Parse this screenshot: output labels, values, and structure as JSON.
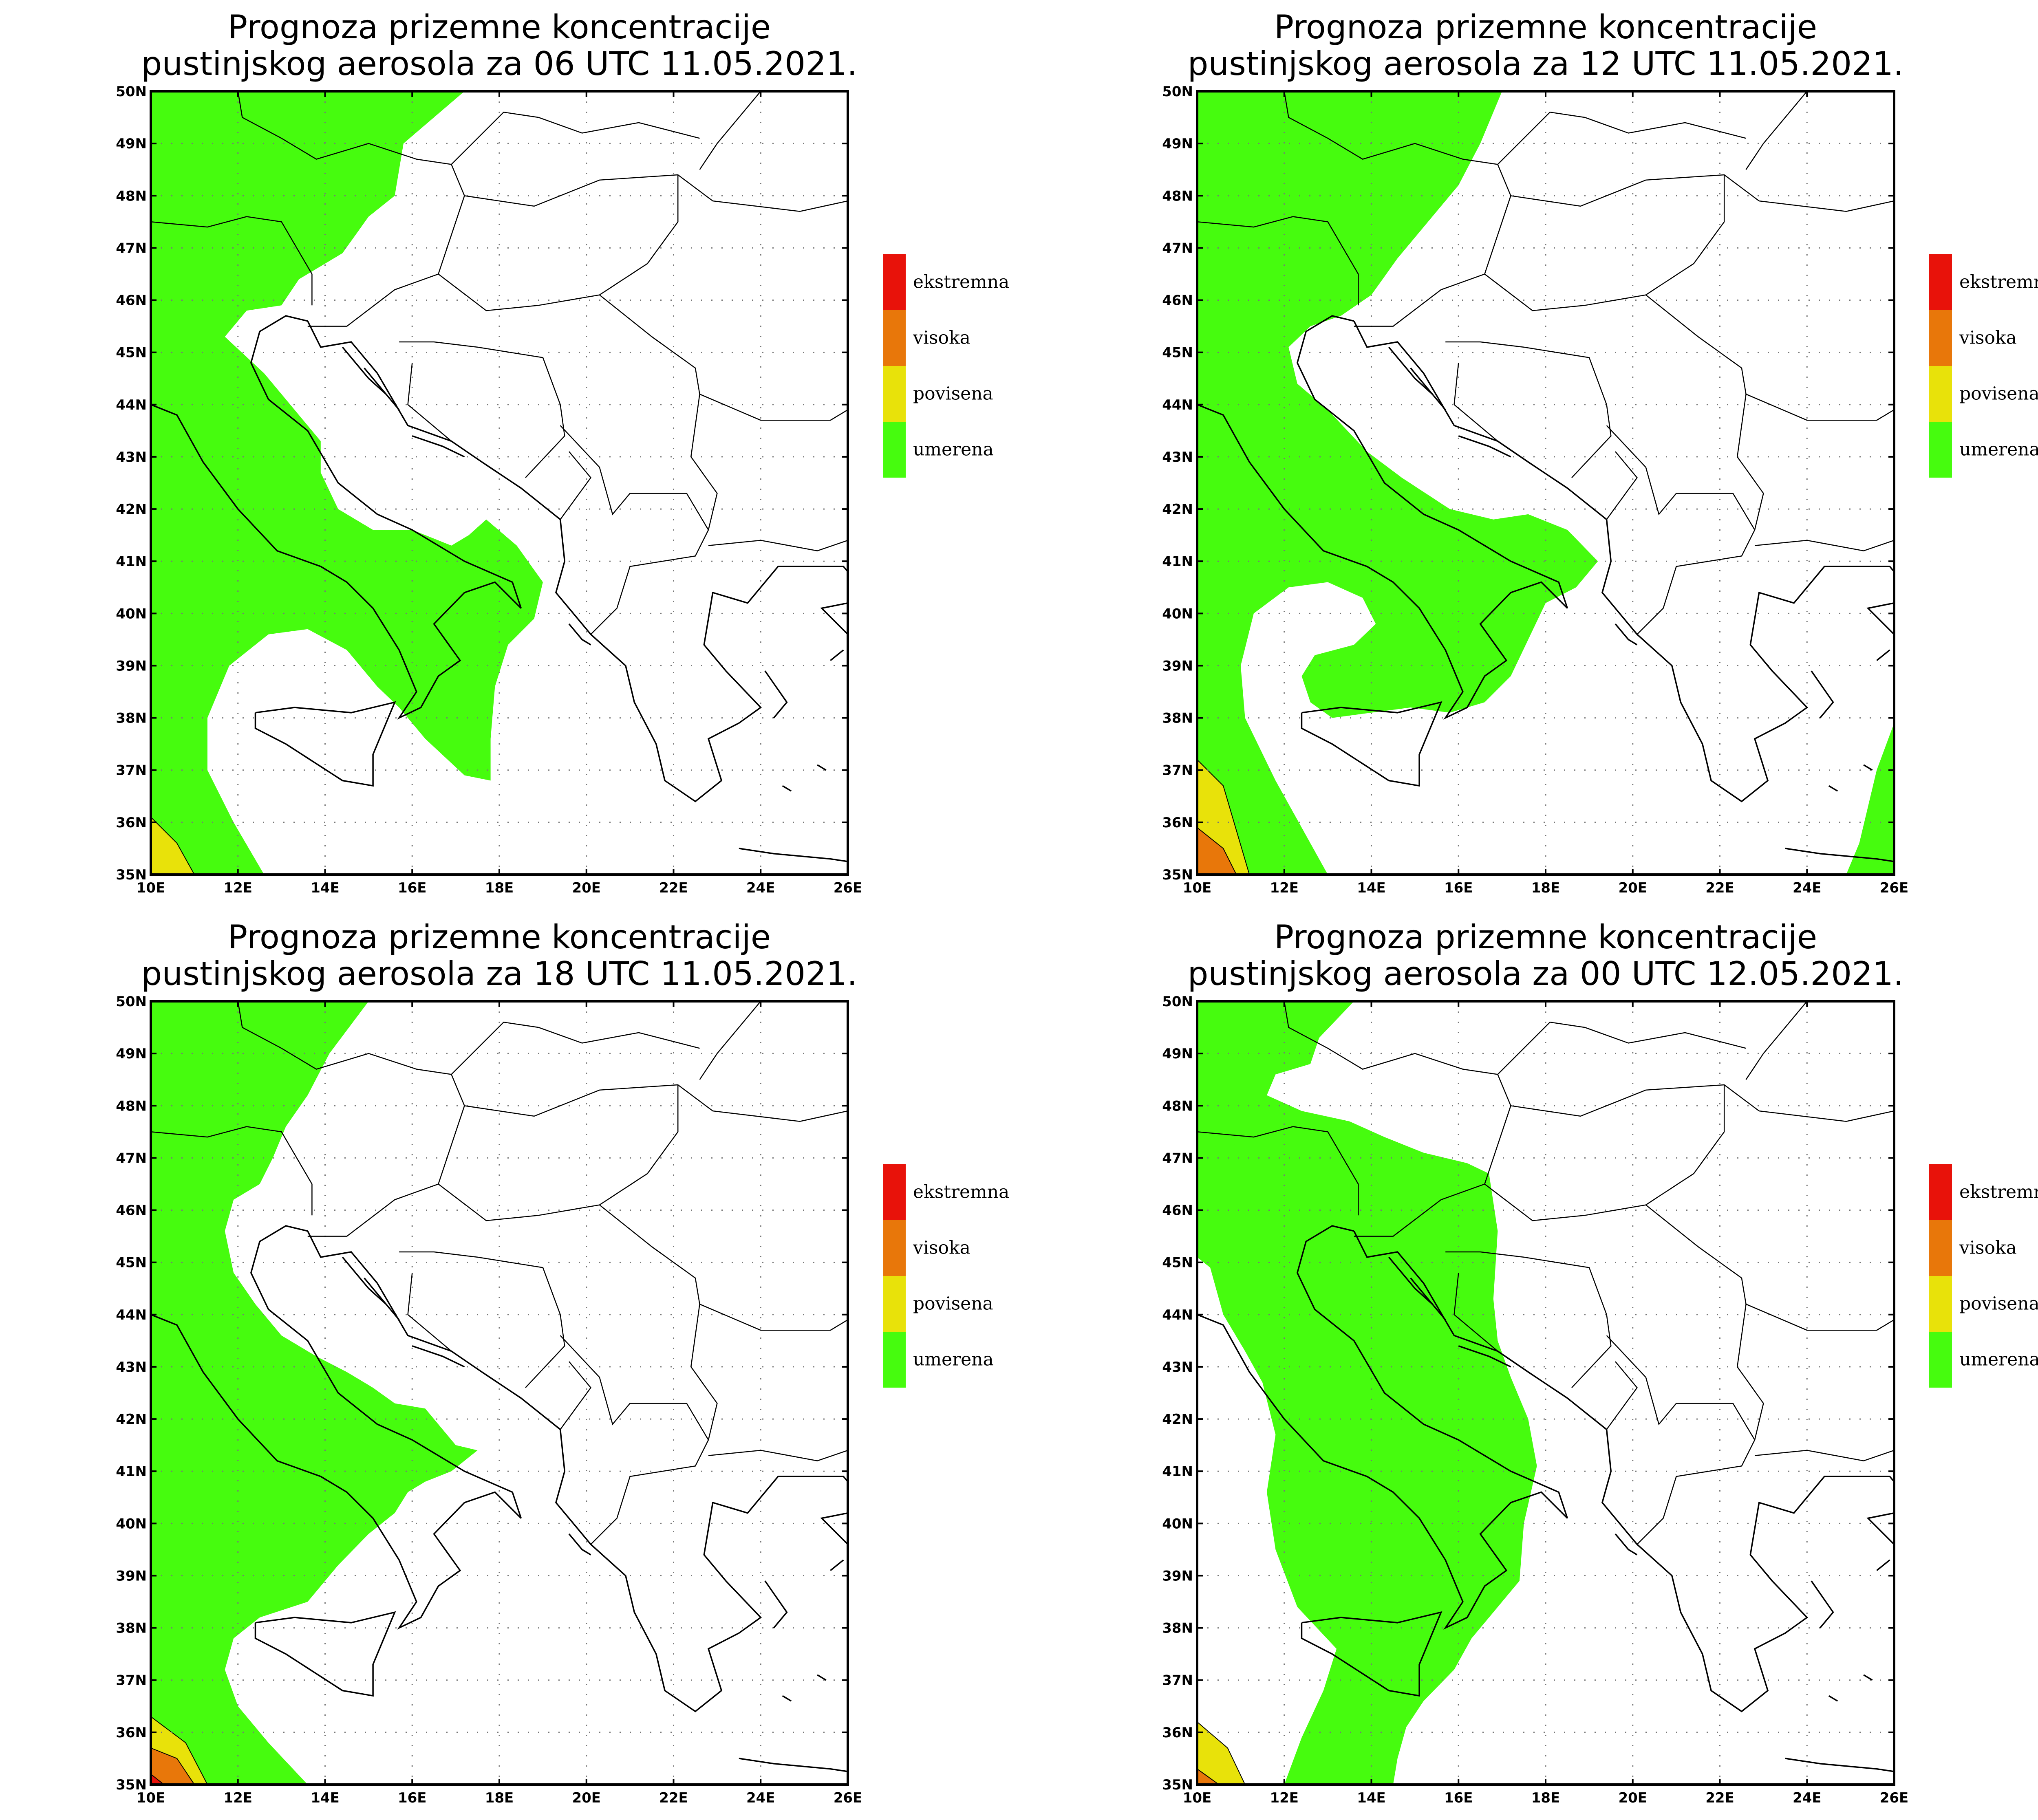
{
  "panels": [
    {
      "title_line1": "Prognoza prizemne koncentracije",
      "title_line2": "pustinjskog aerosola za 06 UTC 11.05.2021."
    },
    {
      "title_line1": "Prognoza prizemne koncentracije",
      "title_line2": "pustinjskog aerosola za 12 UTC 11.05.2021."
    },
    {
      "title_line1": "Prognoza prizemne koncentracije",
      "title_line2": "pustinjskog aerosola za 18 UTC 11.05.2021."
    },
    {
      "title_line1": "Prognoza prizemne koncentracije",
      "title_line2": "pustinjskog aerosola za 00 UTC 12.05.2021."
    }
  ],
  "axes": {
    "lon_labels": [
      "10E",
      "12E",
      "14E",
      "16E",
      "18E",
      "20E",
      "22E",
      "24E",
      "26E"
    ],
    "lat_labels": [
      "35N",
      "36N",
      "37N",
      "38N",
      "39N",
      "40N",
      "41N",
      "42N",
      "43N",
      "44N",
      "45N",
      "46N",
      "47N",
      "48N",
      "49N",
      "50N"
    ],
    "lon_range": [
      10,
      26
    ],
    "lat_range": [
      35,
      50
    ]
  },
  "legend": [
    {
      "label": "ekstremna",
      "color": "#e8120a"
    },
    {
      "label": "visoka",
      "color": "#e8770a"
    },
    {
      "label": "povisena",
      "color": "#e8e20a"
    },
    {
      "label": "umerena",
      "color": "#46fc0e"
    }
  ]
}
